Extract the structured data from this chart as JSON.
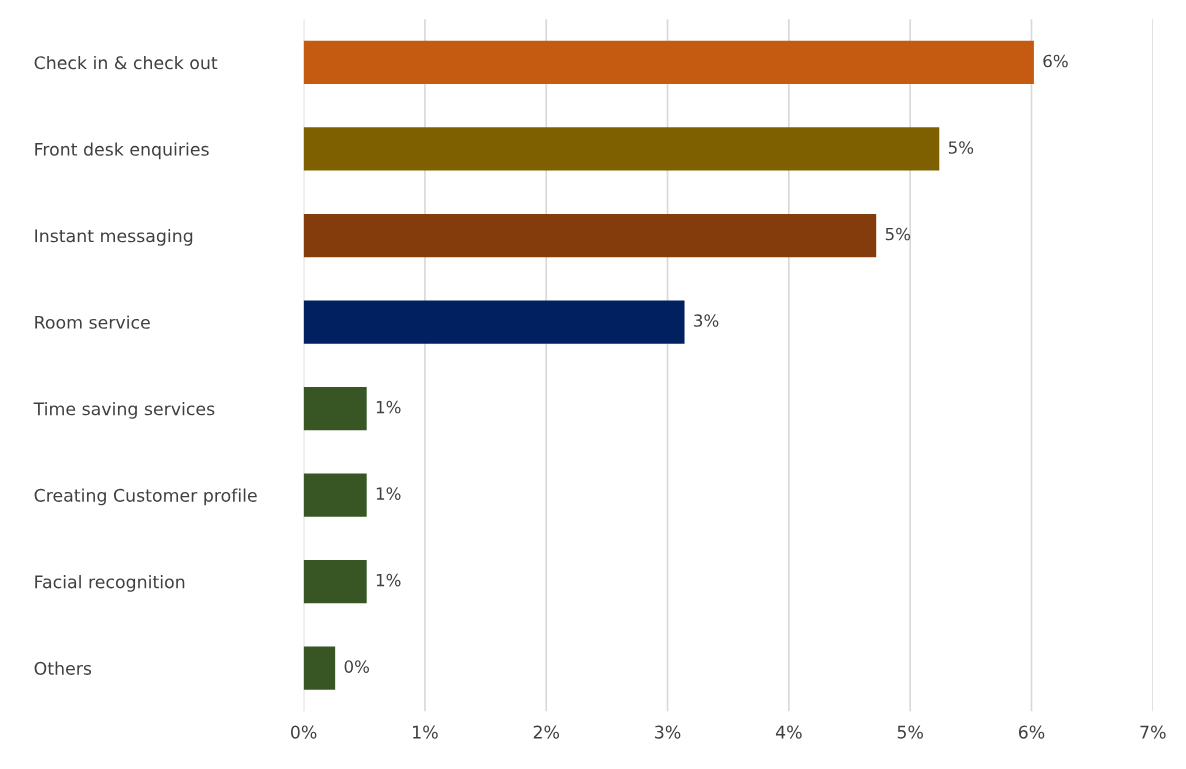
{
  "chart_data": {
    "type": "bar",
    "orientation": "horizontal",
    "categories": [
      "Check in & check out",
      "Front desk enquiries",
      "Instant messaging",
      "Room service",
      "Time saving services",
      "Creating Customer profile",
      "Facial recognition",
      "Others"
    ],
    "values": [
      6.02,
      5.24,
      4.72,
      3.14,
      0.52,
      0.52,
      0.52,
      0.26
    ],
    "value_labels": [
      "6%",
      "5%",
      "5%",
      "3%",
      "1%",
      "1%",
      "1%",
      "0%"
    ],
    "colors": [
      "#c55a11",
      "#7f6000",
      "#843c0c",
      "#002060",
      "#375623",
      "#375623",
      "#375623",
      "#375623"
    ],
    "xlim": [
      0,
      7
    ],
    "xticks": [
      {
        "value": 0,
        "label": "0%"
      },
      {
        "value": 1,
        "label": "1%"
      },
      {
        "value": 2,
        "label": "2%"
      },
      {
        "value": 3,
        "label": "3%"
      },
      {
        "value": 4,
        "label": "4%"
      },
      {
        "value": 5,
        "label": "5%"
      },
      {
        "value": 6,
        "label": "6%"
      },
      {
        "value": 7,
        "label": "7%"
      }
    ],
    "grid": "x"
  }
}
